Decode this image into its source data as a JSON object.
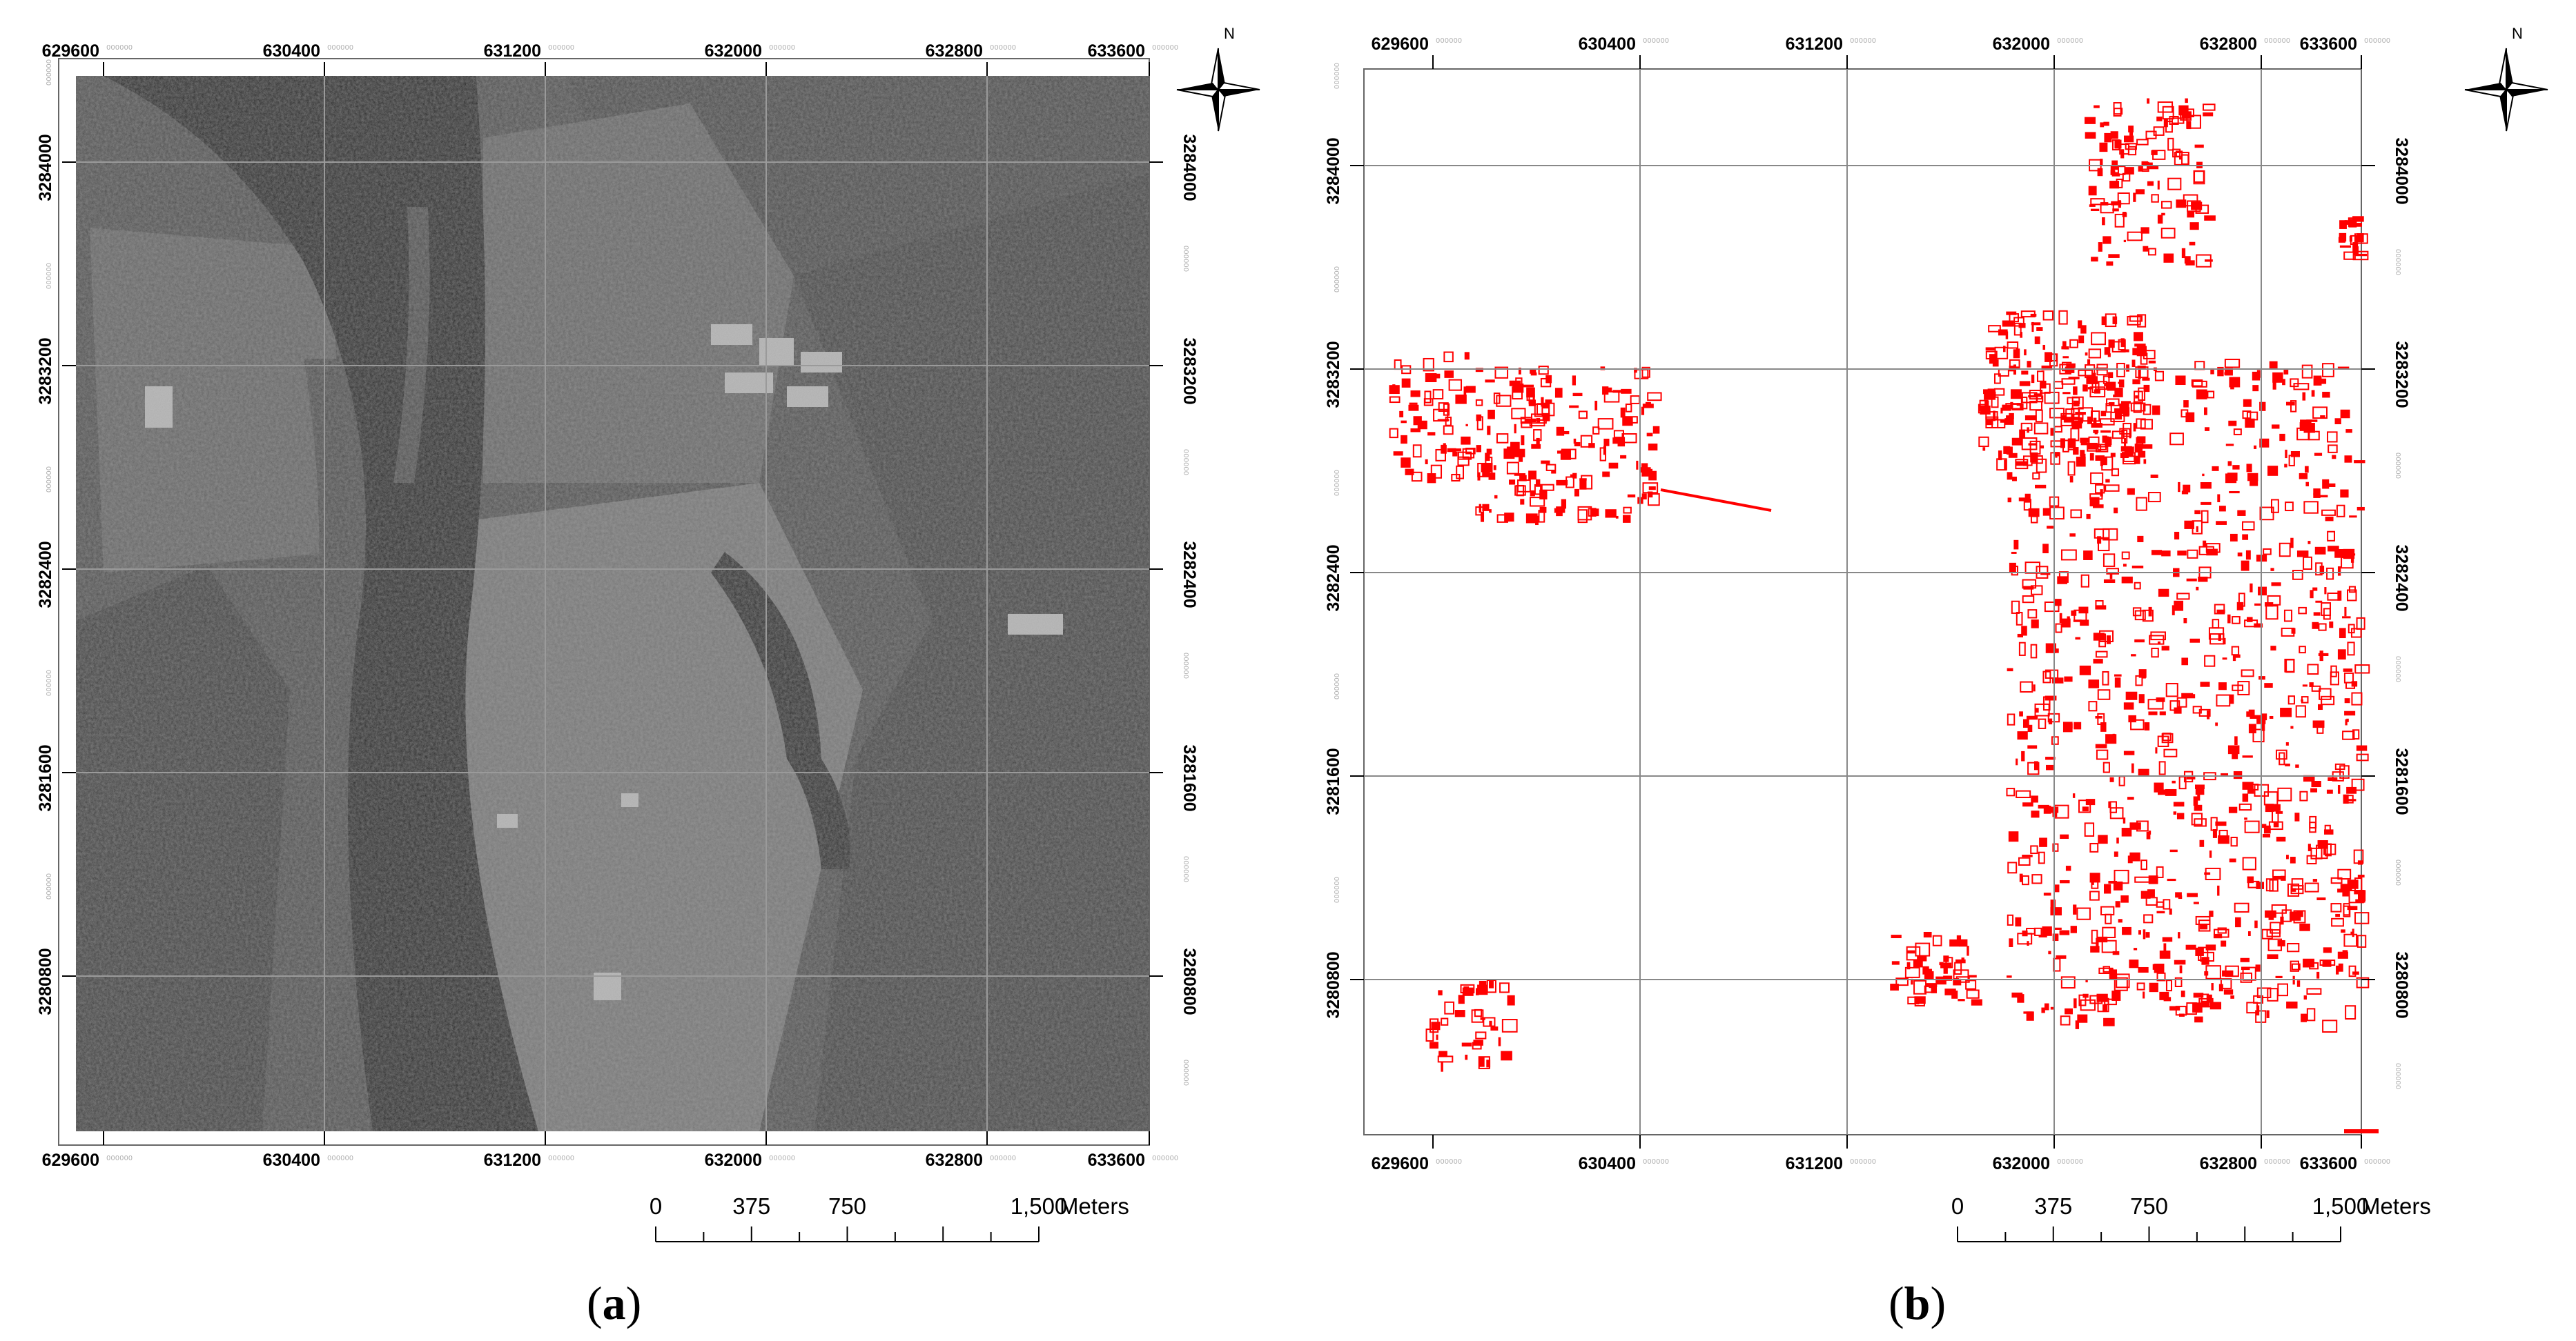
{
  "panels": [
    {
      "id": "a",
      "caption": "a",
      "x_ticks": [
        "629600",
        "630400",
        "631200",
        "632000",
        "632800",
        "633600"
      ],
      "y_ticks": [
        "3284000",
        "3283200",
        "3282400",
        "3281600",
        "3280800"
      ],
      "tick_suffix": "000000",
      "north_label": "N",
      "scale_labels": [
        "0",
        "375",
        "750",
        "1,500"
      ],
      "scale_unit": "Meters",
      "image_style": "grayscale satellite",
      "color": "#000000"
    },
    {
      "id": "b",
      "caption": "b",
      "x_ticks": [
        "629600",
        "630400",
        "631200",
        "632000",
        "632800",
        "633600"
      ],
      "y_ticks": [
        "3284000",
        "3283200",
        "3282400",
        "3281600",
        "3280800"
      ],
      "tick_suffix": "000000",
      "north_label": "N",
      "scale_labels": [
        "0",
        "375",
        "750",
        "1,500"
      ],
      "scale_unit": "Meters",
      "image_style": "red building footprints on white",
      "color": "#ff0000"
    }
  ]
}
